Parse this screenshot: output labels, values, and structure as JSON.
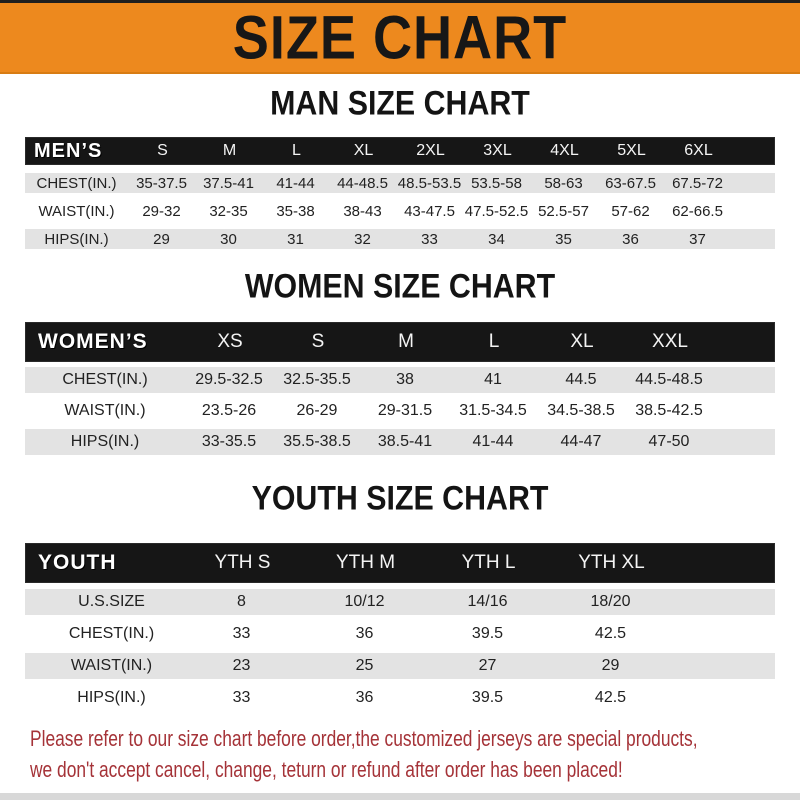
{
  "banner": {
    "title": "SIZE CHART"
  },
  "sections": {
    "men": {
      "heading": "MAN SIZE CHART",
      "group_label": "MEN’S",
      "sizes": [
        "S",
        "M",
        "L",
        "XL",
        "2XL",
        "3XL",
        "4XL",
        "5XL",
        "6XL"
      ],
      "rows": [
        {
          "label": "CHEST(IN.)",
          "values": [
            "35-37.5",
            "37.5-41",
            "41-44",
            "44-48.5",
            "48.5-53.5",
            "53.5-58",
            "58-63",
            "63-67.5",
            "67.5-72"
          ]
        },
        {
          "label": "WAIST(IN.)",
          "values": [
            "29-32",
            "32-35",
            "35-38",
            "38-43",
            "43-47.5",
            "47.5-52.5",
            "52.5-57",
            "57-62",
            "62-66.5"
          ]
        },
        {
          "label": "HIPS(IN.)",
          "values": [
            "29",
            "30",
            "31",
            "32",
            "33",
            "34",
            "35",
            "36",
            "37"
          ]
        }
      ]
    },
    "women": {
      "heading": "WOMEN SIZE CHART",
      "group_label": "WOMEN’S",
      "sizes": [
        "XS",
        "S",
        "M",
        "L",
        "XL",
        "XXL"
      ],
      "rows": [
        {
          "label": "CHEST(IN.)",
          "values": [
            "29.5-32.5",
            "32.5-35.5",
            "38",
            "41",
            "44.5",
            "44.5-48.5"
          ]
        },
        {
          "label": "WAIST(IN.)",
          "values": [
            "23.5-26",
            "26-29",
            "29-31.5",
            "31.5-34.5",
            "34.5-38.5",
            "38.5-42.5"
          ]
        },
        {
          "label": "HIPS(IN.)",
          "values": [
            "33-35.5",
            "35.5-38.5",
            "38.5-41",
            "41-44",
            "44-47",
            "47-50"
          ]
        }
      ]
    },
    "youth": {
      "heading": "YOUTH SIZE CHART",
      "group_label": "YOUTH",
      "sizes": [
        "YTH S",
        "YTH M",
        "YTH L",
        "YTH XL"
      ],
      "rows": [
        {
          "label": "U.S.SIZE",
          "values": [
            "8",
            "10/12",
            "14/16",
            "18/20"
          ]
        },
        {
          "label": "CHEST(IN.)",
          "values": [
            "33",
            "36",
            "39.5",
            "42.5"
          ]
        },
        {
          "label": "WAIST(IN.)",
          "values": [
            "23",
            "25",
            "27",
            "29"
          ]
        },
        {
          "label": "HIPS(IN.)",
          "values": [
            "33",
            "36",
            "39.5",
            "42.5"
          ]
        }
      ]
    }
  },
  "footer": {
    "line1": "Please refer to our size chart before order,the customized jerseys are special products,",
    "line2": "we don't accept cancel, change, teturn or refund after order has been placed!"
  },
  "colors": {
    "banner_orange": "#ED891E",
    "bar_black": "#161616",
    "row_gray": "#E3E3E3",
    "footer_red": "#A53338"
  }
}
